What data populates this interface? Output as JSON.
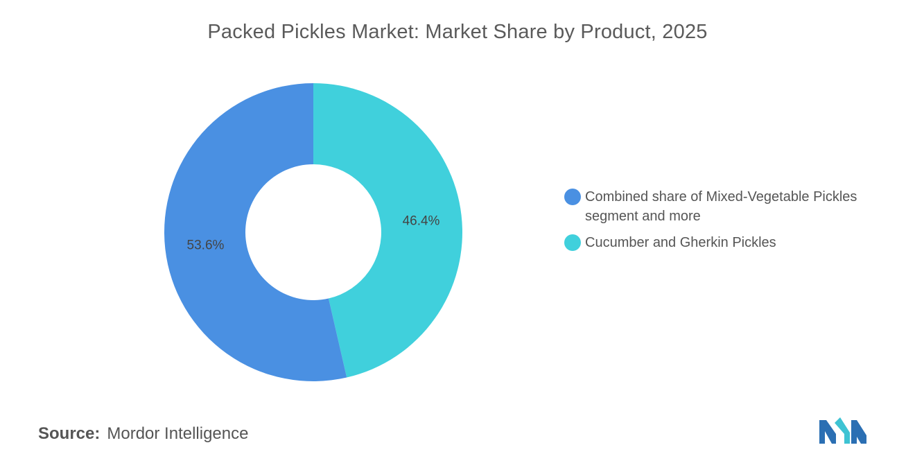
{
  "chart_data": {
    "type": "pie",
    "title": "Packed Pickles Market: Market Share by Product, 2025",
    "donut": true,
    "unit": "%",
    "slices": [
      {
        "label": "Combined share of Mixed-Vegetable Pickles segment and more",
        "value": 53.6,
        "display": "53.6%",
        "color": "#4a90e2"
      },
      {
        "label": "Cucumber and Gherkin Pickles",
        "value": 46.4,
        "display": "46.4%",
        "color": "#40d0dc"
      }
    ],
    "legend_position": "right"
  },
  "source": {
    "key": "Source:",
    "value": "Mordor Intelligence"
  },
  "logo": {
    "icon": "mordor-intelligence-logo-icon",
    "colors": [
      "#2b6fb3",
      "#3ec3d3"
    ]
  }
}
